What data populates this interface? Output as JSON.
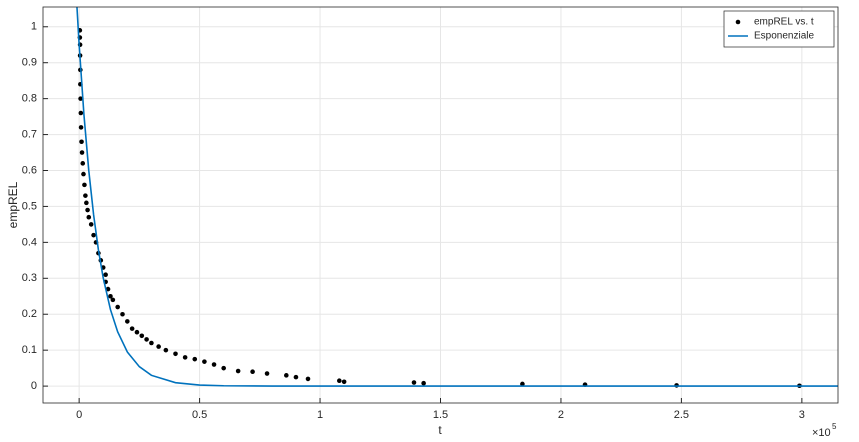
{
  "chart_data": {
    "type": "scatter",
    "xlabel": "t",
    "ylabel": "empREL",
    "x_exponent": {
      "base": "×10",
      "power": "5"
    },
    "xlim": [
      -0.15,
      3.15
    ],
    "ylim": [
      -0.047,
      1.055
    ],
    "xticks": [
      0,
      0.5,
      1,
      1.5,
      2,
      2.5,
      3
    ],
    "yticks": [
      0,
      0.1,
      0.2,
      0.3,
      0.4,
      0.5,
      0.6,
      0.7,
      0.8,
      0.9,
      1
    ],
    "grid": true,
    "legend": "northeast",
    "series": [
      {
        "name": "empREL vs. t",
        "type": "scatter",
        "color": "#000000",
        "x": [
          0.003,
          0.003,
          0.004,
          0.004,
          0.005,
          0.005,
          0.006,
          0.007,
          0.008,
          0.01,
          0.012,
          0.015,
          0.018,
          0.022,
          0.026,
          0.03,
          0.035,
          0.04,
          0.05,
          0.06,
          0.07,
          0.08,
          0.09,
          0.1,
          0.11,
          0.11,
          0.12,
          0.13,
          0.14,
          0.16,
          0.18,
          0.2,
          0.22,
          0.24,
          0.26,
          0.28,
          0.3,
          0.33,
          0.36,
          0.4,
          0.44,
          0.48,
          0.52,
          0.56,
          0.6,
          0.66,
          0.72,
          0.78,
          0.86,
          0.9,
          0.95,
          1.08,
          1.1,
          1.39,
          1.43,
          1.84,
          2.1,
          2.48,
          2.99
        ],
        "values": [
          0.99,
          0.97,
          0.95,
          0.92,
          0.88,
          0.84,
          0.8,
          0.76,
          0.72,
          0.68,
          0.65,
          0.62,
          0.59,
          0.56,
          0.53,
          0.51,
          0.49,
          0.47,
          0.45,
          0.42,
          0.4,
          0.37,
          0.35,
          0.33,
          0.31,
          0.29,
          0.27,
          0.25,
          0.24,
          0.22,
          0.2,
          0.18,
          0.16,
          0.15,
          0.14,
          0.13,
          0.12,
          0.11,
          0.1,
          0.09,
          0.08,
          0.075,
          0.068,
          0.06,
          0.05,
          0.042,
          0.04,
          0.035,
          0.03,
          0.025,
          0.02,
          0.015,
          0.012,
          0.01,
          0.008,
          0.006,
          0.004,
          0.002,
          0.001
        ]
      },
      {
        "name": "Esponenziale",
        "type": "line",
        "color": "#0072BD",
        "x": [
          -0.01,
          0,
          0.02,
          0.04,
          0.06,
          0.08,
          0.1,
          0.13,
          0.16,
          0.2,
          0.25,
          0.3,
          0.4,
          0.5,
          0.6,
          0.8,
          1,
          3.15
        ],
        "values": [
          1.066,
          0.95,
          0.755,
          0.6,
          0.477,
          0.379,
          0.301,
          0.213,
          0.151,
          0.095,
          0.054,
          0.03,
          0.0095,
          0.003,
          0.001,
          0.0001,
          0,
          0
        ]
      }
    ]
  }
}
